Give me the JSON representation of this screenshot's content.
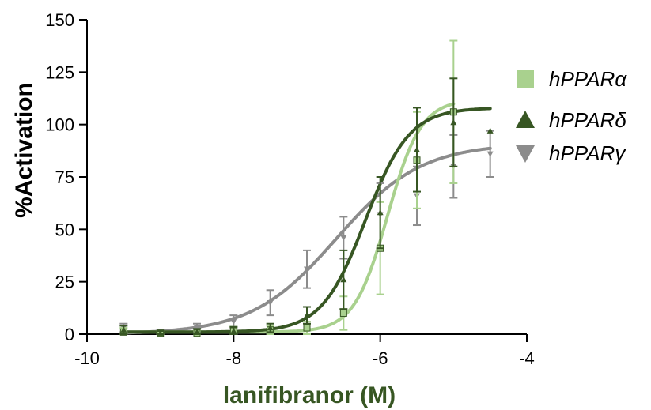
{
  "chart_data": {
    "type": "scatter",
    "xlabel": "lanifibranor (M)",
    "ylabel": "%Activation",
    "xlim": [
      -10,
      -4
    ],
    "ylim": [
      0,
      150
    ],
    "xticks": [
      -10,
      -8,
      -6,
      -4
    ],
    "xtick_labels": [
      "-10",
      "-8",
      "-6",
      "-4"
    ],
    "yticks": [
      0,
      25,
      50,
      75,
      100,
      125,
      150
    ],
    "ytick_labels": [
      "0",
      "25",
      "50",
      "75",
      "100",
      "125",
      "150"
    ],
    "grid": false,
    "legend_position": "right",
    "series": [
      {
        "name": "hPPARα",
        "color": "#a9d18e",
        "marker": "square",
        "points": [
          {
            "x": -9.5,
            "y": 1,
            "err": 2
          },
          {
            "x": -9.0,
            "y": 0.5,
            "err": 1
          },
          {
            "x": -8.5,
            "y": 0.5,
            "err": 1
          },
          {
            "x": -8.0,
            "y": 1.5,
            "err": 2
          },
          {
            "x": -7.5,
            "y": 2,
            "err": 2
          },
          {
            "x": -7.0,
            "y": 3,
            "err": 3
          },
          {
            "x": -6.5,
            "y": 10,
            "err": 8
          },
          {
            "x": -6.0,
            "y": 41,
            "err": 22
          },
          {
            "x": -5.5,
            "y": 83,
            "err": 23
          },
          {
            "x": -5.0,
            "y": 106,
            "err": 34
          }
        ],
        "fit": {
          "bottom": 1,
          "top": 112,
          "logEC50": -5.9,
          "hill": 1.9
        }
      },
      {
        "name": "hPPARδ",
        "color": "#375623",
        "marker": "triangle-up",
        "points": [
          {
            "x": -9.5,
            "y": 2,
            "err": 2
          },
          {
            "x": -9.0,
            "y": 0.5,
            "err": 1
          },
          {
            "x": -8.5,
            "y": 1,
            "err": 1.5
          },
          {
            "x": -8.0,
            "y": 1.5,
            "err": 2
          },
          {
            "x": -7.5,
            "y": 3,
            "err": 2
          },
          {
            "x": -7.0,
            "y": 9,
            "err": 4
          },
          {
            "x": -6.5,
            "y": 26,
            "err": 14
          },
          {
            "x": -6.0,
            "y": 58,
            "err": 17
          },
          {
            "x": -5.5,
            "y": 88,
            "err": 20
          },
          {
            "x": -5.0,
            "y": 101,
            "err": 21
          },
          {
            "x": -4.5,
            "y": 97,
            "err": 0
          }
        ],
        "fit": {
          "bottom": 1,
          "top": 108,
          "logEC50": -6.2,
          "hill": 1.45
        }
      },
      {
        "name": "hPPARγ",
        "color": "#8c8c8c",
        "marker": "triangle-down",
        "points": [
          {
            "x": -9.5,
            "y": 3,
            "err": 2
          },
          {
            "x": -9.0,
            "y": 1,
            "err": 1
          },
          {
            "x": -8.5,
            "y": 3,
            "err": 2
          },
          {
            "x": -8.0,
            "y": 6,
            "err": 3
          },
          {
            "x": -7.5,
            "y": 15,
            "err": 6
          },
          {
            "x": -7.0,
            "y": 31,
            "err": 9
          },
          {
            "x": -6.5,
            "y": 46,
            "err": 10
          },
          {
            "x": -6.0,
            "y": 57,
            "err": 15
          },
          {
            "x": -5.5,
            "y": 66,
            "err": 14
          },
          {
            "x": -5.0,
            "y": 80,
            "err": 15
          },
          {
            "x": -4.5,
            "y": 86,
            "err": 11
          }
        ],
        "fit": {
          "bottom": 0,
          "top": 91,
          "logEC50": -6.6,
          "hill": 0.75
        }
      }
    ]
  }
}
